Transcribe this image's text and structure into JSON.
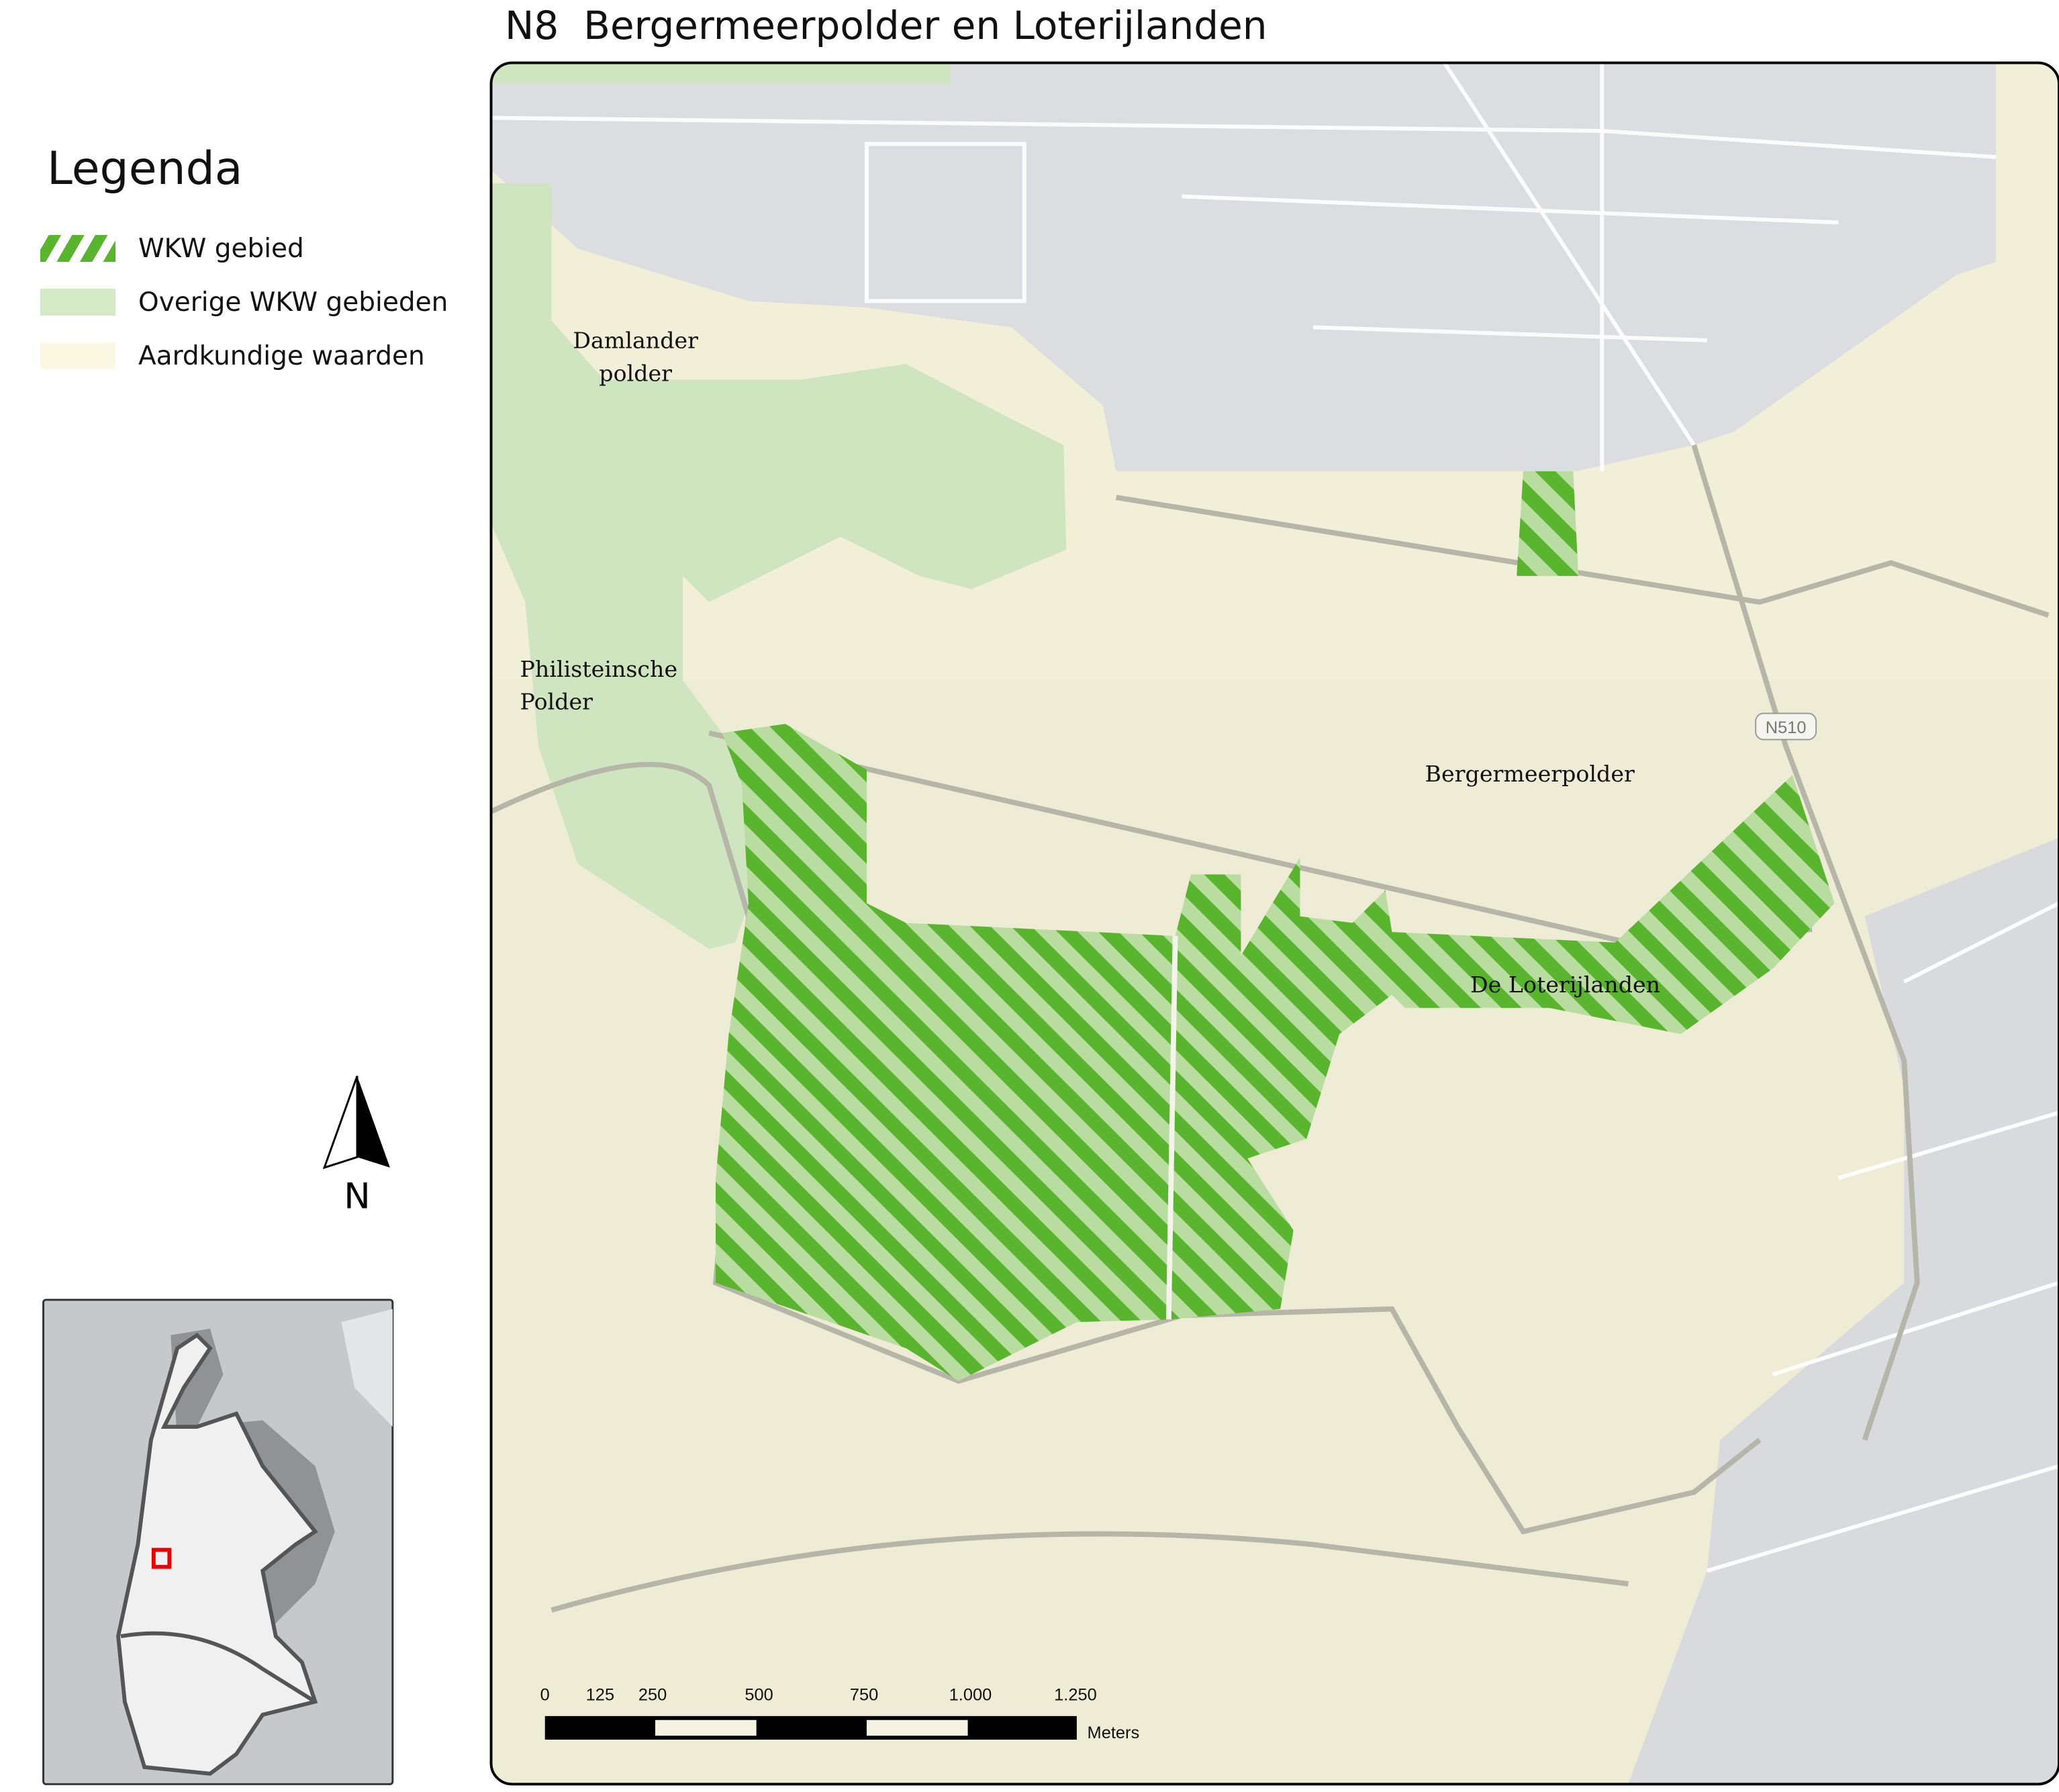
{
  "title": "N8  Bergermeerpolder en Loterijlanden",
  "legend": {
    "title": "Legenda",
    "items": [
      {
        "label": "WKW gebied",
        "style": "hatched",
        "color": "#5ab52e"
      },
      {
        "label": "Overige WKW gebieden",
        "color": "#d4e9c6"
      },
      {
        "label": "Aardkundige waarden",
        "color": "#fbf8e4"
      }
    ]
  },
  "map": {
    "place_labels": [
      "Damlander",
      "polder",
      "Philisteinsche",
      "Polder",
      "Bergermeerpolder",
      "De Loterijlanden"
    ],
    "road_label": "N510",
    "colors": {
      "wkw": "#5ab52e",
      "wkw_light": "#b9dca0",
      "overige": "#cfe5bf",
      "aardkundig": "#f2efd9",
      "urban": "#dcdde0"
    }
  },
  "scale_bar": {
    "ticks": [
      "0",
      "125",
      "250",
      "500",
      "750",
      "1.000",
      "1.250"
    ],
    "unit": "Meters"
  },
  "north_arrow": {
    "label": "N"
  }
}
